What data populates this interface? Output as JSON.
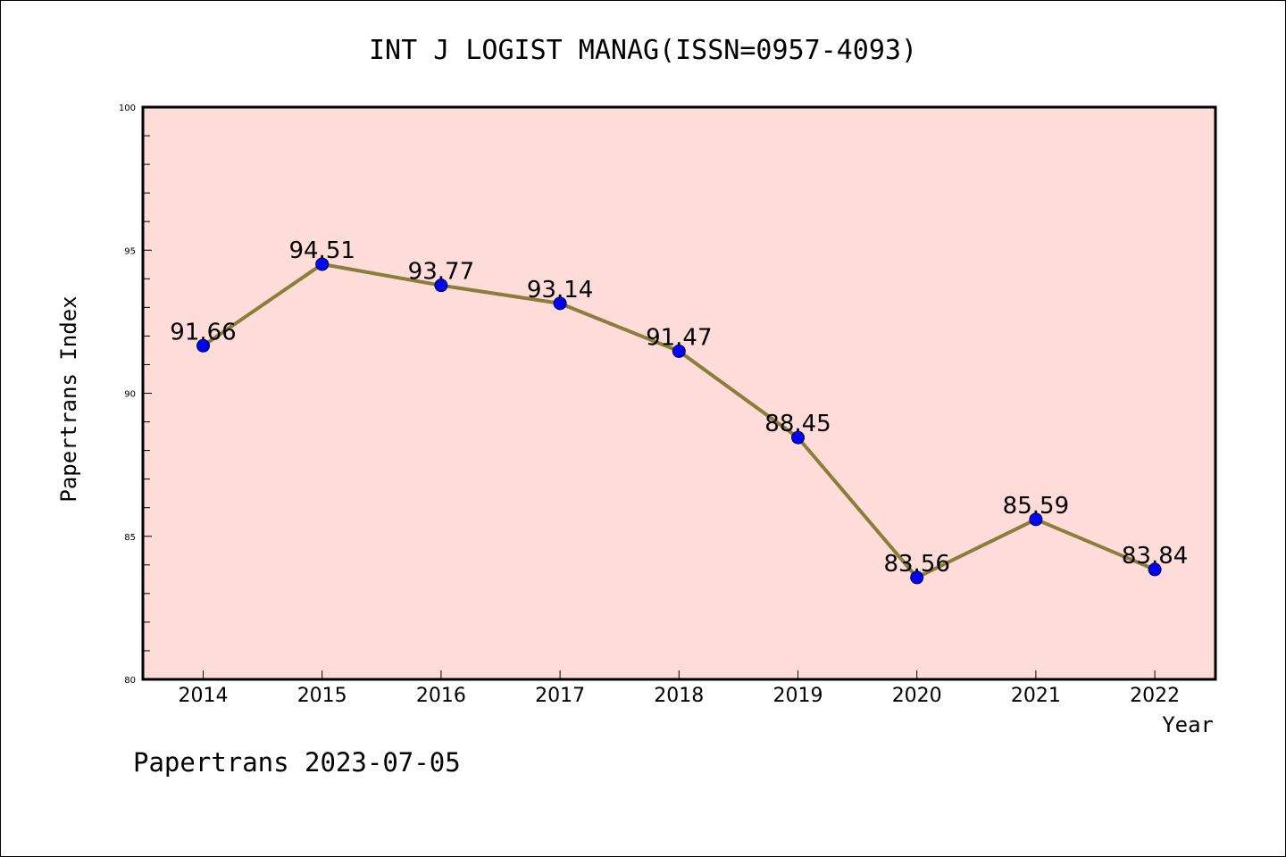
{
  "chart_data": {
    "type": "line",
    "title": "INT J LOGIST MANAG(ISSN=0957-4093)",
    "xlabel": "Year",
    "ylabel": "Papertrans Index",
    "footer": "Papertrans 2023-07-05",
    "categories": [
      "2014",
      "2015",
      "2016",
      "2017",
      "2018",
      "2019",
      "2020",
      "2021",
      "2022"
    ],
    "series": [
      {
        "values": [
          91.66,
          94.51,
          93.77,
          93.14,
          91.47,
          88.45,
          83.56,
          85.59,
          83.84
        ],
        "labels": [
          "91.66",
          "94.51",
          "93.77",
          "93.14",
          "91.47",
          "88.45",
          "83.56",
          "85.59",
          "83.84"
        ],
        "line_color": "#8B7D3A",
        "marker_color": "#0000FF"
      }
    ],
    "ylim": [
      80,
      100
    ],
    "yticks": [
      "80",
      "85",
      "90",
      "95",
      "100"
    ],
    "plot_background": "#FDDCD9",
    "grid": false
  }
}
